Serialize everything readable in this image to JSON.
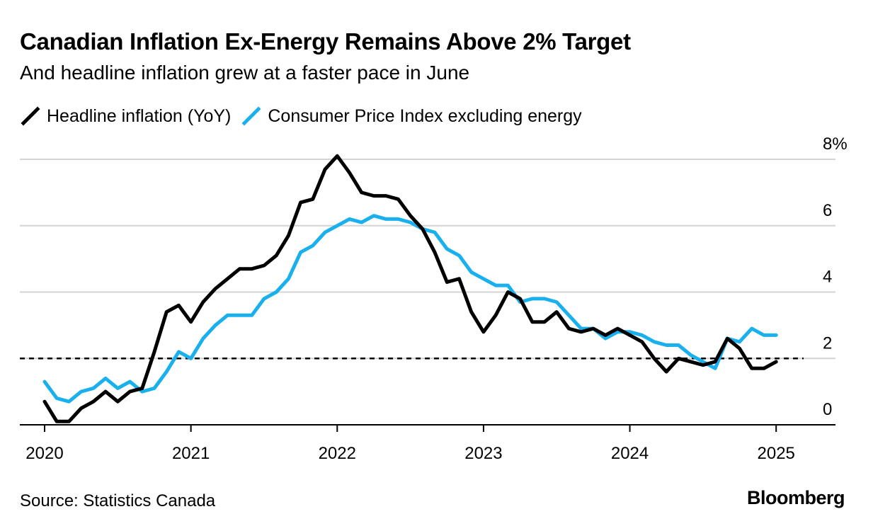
{
  "title": "Canadian Inflation Ex-Energy Remains Above 2% Target",
  "subtitle": "And headline inflation grew at a faster pace in June",
  "source": "Source: Statistics Canada",
  "brand": "Bloomberg",
  "chart_data": {
    "type": "line",
    "legend_position": "top-left",
    "grid": true,
    "ylim": [
      0,
      8
    ],
    "y_ticks": [
      0,
      2,
      4,
      6,
      8
    ],
    "y_tick_labels": [
      "0",
      "2",
      "4",
      "6",
      "8%"
    ],
    "x_tick_labels": [
      "2020",
      "2021",
      "2022",
      "2023",
      "2024",
      "2025"
    ],
    "x_ticks": [
      "2020-01",
      "2021-01",
      "2022-01",
      "2023-01",
      "2024-01",
      "2025-01"
    ],
    "x_start": "2020-01",
    "x_end": "2025-08",
    "reference_line": {
      "y": 2,
      "style": "dashed"
    },
    "series": [
      {
        "name": "Headline inflation (YoY)",
        "color": "#000000",
        "start": "2020-01",
        "values": [
          0.7,
          0.1,
          0.1,
          0.5,
          0.7,
          1.0,
          0.7,
          1.0,
          1.1,
          2.2,
          3.4,
          3.6,
          3.1,
          3.7,
          4.1,
          4.4,
          4.7,
          4.7,
          4.8,
          5.1,
          5.7,
          6.7,
          6.8,
          7.7,
          8.1,
          7.6,
          7.0,
          6.9,
          6.9,
          6.8,
          6.3,
          5.9,
          5.2,
          4.3,
          4.4,
          3.4,
          2.8,
          3.3,
          4.0,
          3.8,
          3.1,
          3.1,
          3.4,
          2.9,
          2.8,
          2.9,
          2.7,
          2.9,
          2.7,
          2.5,
          2.0,
          1.6,
          2.0,
          1.9,
          1.8,
          1.9,
          2.6,
          2.3,
          1.7,
          1.7,
          1.9
        ]
      },
      {
        "name": "Consumer Price Index excluding energy",
        "color": "#1ab0ee",
        "start": "2020-01",
        "values": [
          1.3,
          0.8,
          0.7,
          1.0,
          1.1,
          1.4,
          1.1,
          1.3,
          1.0,
          1.1,
          1.6,
          2.2,
          2.0,
          2.6,
          3.0,
          3.3,
          3.3,
          3.3,
          3.8,
          4.0,
          4.4,
          5.2,
          5.4,
          5.8,
          6.0,
          6.2,
          6.1,
          6.3,
          6.2,
          6.2,
          6.1,
          5.9,
          5.8,
          5.3,
          5.1,
          4.6,
          4.4,
          4.2,
          4.2,
          3.7,
          3.8,
          3.8,
          3.7,
          3.3,
          2.9,
          2.9,
          2.6,
          2.8,
          2.8,
          2.7,
          2.5,
          2.4,
          2.4,
          2.1,
          1.9,
          1.7,
          2.6,
          2.5,
          2.9,
          2.7,
          2.7
        ]
      }
    ]
  }
}
